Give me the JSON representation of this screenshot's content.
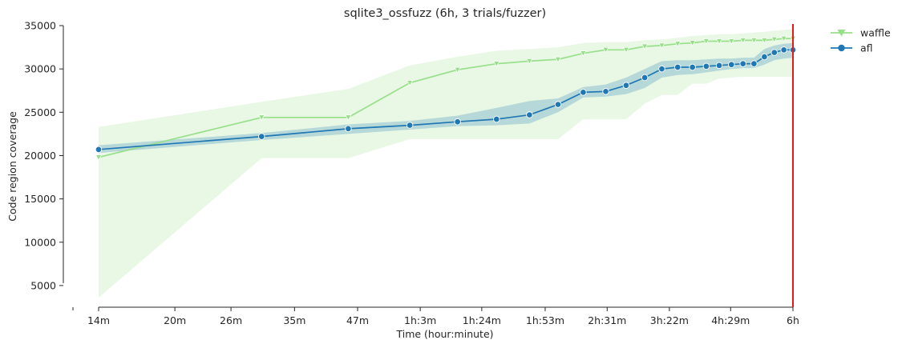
{
  "chart_data": {
    "type": "line",
    "title": "sqlite3_ossfuzz (6h, 3 trials/fuzzer)",
    "xlabel": "Time (hour:minute)",
    "ylabel": "Code region coverage",
    "x_scale": "log",
    "x_unit": "minutes",
    "xlim": [
      14,
      360
    ],
    "ylim": [
      2500,
      35000
    ],
    "x_ticks": [
      {
        "value": 14,
        "label": "14m"
      },
      {
        "value": 20,
        "label": "20m"
      },
      {
        "value": 26,
        "label": "26m"
      },
      {
        "value": 35,
        "label": "35m"
      },
      {
        "value": 47,
        "label": "47m"
      },
      {
        "value": 63,
        "label": "1h:3m"
      },
      {
        "value": 84,
        "label": "1h:24m"
      },
      {
        "value": 113,
        "label": "1h:53m"
      },
      {
        "value": 151,
        "label": "2h:31m"
      },
      {
        "value": 202,
        "label": "3h:22m"
      },
      {
        "value": 269,
        "label": "4h:29m"
      },
      {
        "value": 360,
        "label": "6h"
      }
    ],
    "y_ticks": [
      5000,
      10000,
      15000,
      20000,
      25000,
      30000,
      35000
    ],
    "vline": {
      "x": 360,
      "color": "#e41a1c"
    },
    "legend_position": "top-right-outside",
    "series": [
      {
        "name": "waffle",
        "color": "#98df8a",
        "marker": "triangle-down",
        "x": [
          14,
          30,
          45,
          60,
          75,
          90,
          105,
          120,
          135,
          150,
          165,
          180,
          195,
          210,
          225,
          240,
          255,
          270,
          285,
          300,
          315,
          330,
          345,
          360
        ],
        "y": [
          19800,
          24400,
          24400,
          28400,
          29900,
          30600,
          30900,
          31100,
          31800,
          32200,
          32200,
          32600,
          32700,
          32900,
          33000,
          33200,
          33200,
          33200,
          33300,
          33300,
          33300,
          33400,
          33500,
          33500
        ],
        "lower": [
          3600,
          19700,
          19700,
          21900,
          21900,
          21900,
          21900,
          21900,
          24200,
          24200,
          24200,
          26000,
          27000,
          27000,
          28300,
          28300,
          28900,
          29000,
          29100,
          29100,
          29100,
          29100,
          29100,
          29100
        ],
        "upper": [
          23300,
          26200,
          27700,
          30400,
          31400,
          32100,
          32300,
          32500,
          33000,
          33100,
          33100,
          33300,
          33400,
          33600,
          33800,
          33900,
          34000,
          34000,
          34100,
          34200,
          34300,
          34400,
          34500,
          34600
        ]
      },
      {
        "name": "afl",
        "color": "#1f77b4",
        "marker": "circle",
        "x": [
          14,
          30,
          45,
          60,
          75,
          90,
          105,
          120,
          135,
          150,
          165,
          180,
          195,
          210,
          225,
          240,
          255,
          270,
          285,
          300,
          315,
          330,
          345,
          360
        ],
        "y": [
          20700,
          22200,
          23100,
          23500,
          23900,
          24200,
          24700,
          25900,
          27300,
          27400,
          28100,
          29000,
          30000,
          30200,
          30200,
          30300,
          30400,
          30500,
          30600,
          30600,
          31400,
          31900,
          32200,
          32200
        ],
        "lower": [
          20300,
          21800,
          22500,
          23000,
          23400,
          23500,
          23700,
          25000,
          26700,
          26800,
          27100,
          27800,
          29000,
          29300,
          29400,
          29600,
          29800,
          30000,
          30100,
          30100,
          30500,
          31000,
          31200,
          31300
        ],
        "upper": [
          21200,
          22600,
          23600,
          24000,
          24600,
          25500,
          26300,
          26600,
          27900,
          28200,
          29000,
          30000,
          30900,
          31000,
          31000,
          31100,
          31200,
          31200,
          31300,
          31300,
          32300,
          32700,
          32900,
          33000
        ]
      }
    ]
  }
}
